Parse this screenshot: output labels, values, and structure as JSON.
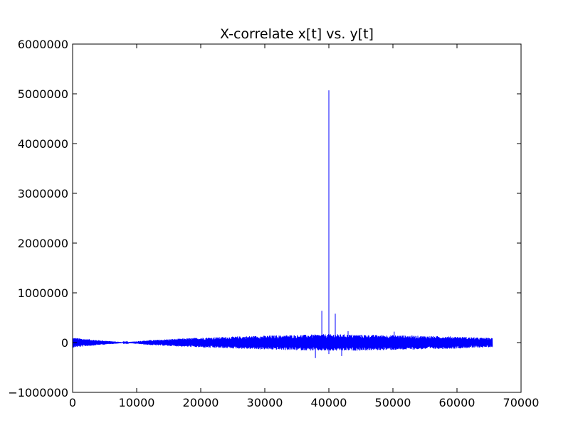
{
  "chart_data": {
    "type": "line",
    "title": "X-correlate x[t] vs. y[t]",
    "xlabel": "",
    "ylabel": "",
    "xlim": [
      0,
      70000
    ],
    "ylim": [
      -1000000,
      6000000
    ],
    "x_ticks": [
      0,
      10000,
      20000,
      30000,
      40000,
      50000,
      60000,
      70000
    ],
    "y_ticks": [
      -1000000,
      0,
      1000000,
      2000000,
      3000000,
      4000000,
      5000000,
      6000000
    ],
    "x_tick_labels": [
      "0",
      "10000",
      "20000",
      "30000",
      "40000",
      "50000",
      "60000",
      "70000"
    ],
    "y_tick_labels": [
      "−1000000",
      "0",
      "1000000",
      "2000000",
      "3000000",
      "4000000",
      "5000000",
      "6000000"
    ],
    "grid": false,
    "line_color": "#0000ff",
    "series": [
      {
        "x_range": [
          0,
          65535
        ],
        "envelope": [
          {
            "x": 0,
            "amplitude": 100000
          },
          {
            "x": 4000,
            "amplitude": 50000
          },
          {
            "x": 8200,
            "amplitude": 5000
          },
          {
            "x": 12000,
            "amplitude": 50000
          },
          {
            "x": 20000,
            "amplitude": 100000
          },
          {
            "x": 30000,
            "amplitude": 140000
          },
          {
            "x": 40000,
            "amplitude": 170000
          },
          {
            "x": 50000,
            "amplitude": 150000
          },
          {
            "x": 60000,
            "amplitude": 120000
          },
          {
            "x": 65535,
            "amplitude": 90000
          }
        ],
        "peaks": [
          {
            "x": 40000,
            "y": 5070000
          },
          {
            "x": 38900,
            "y": 640000
          },
          {
            "x": 41000,
            "y": 580000
          },
          {
            "x": 37900,
            "y": -310000
          },
          {
            "x": 42000,
            "y": -270000
          },
          {
            "x": 40000,
            "y": -230000
          },
          {
            "x": 43000,
            "y": 230000
          },
          {
            "x": 50200,
            "y": 220000
          }
        ]
      }
    ]
  }
}
